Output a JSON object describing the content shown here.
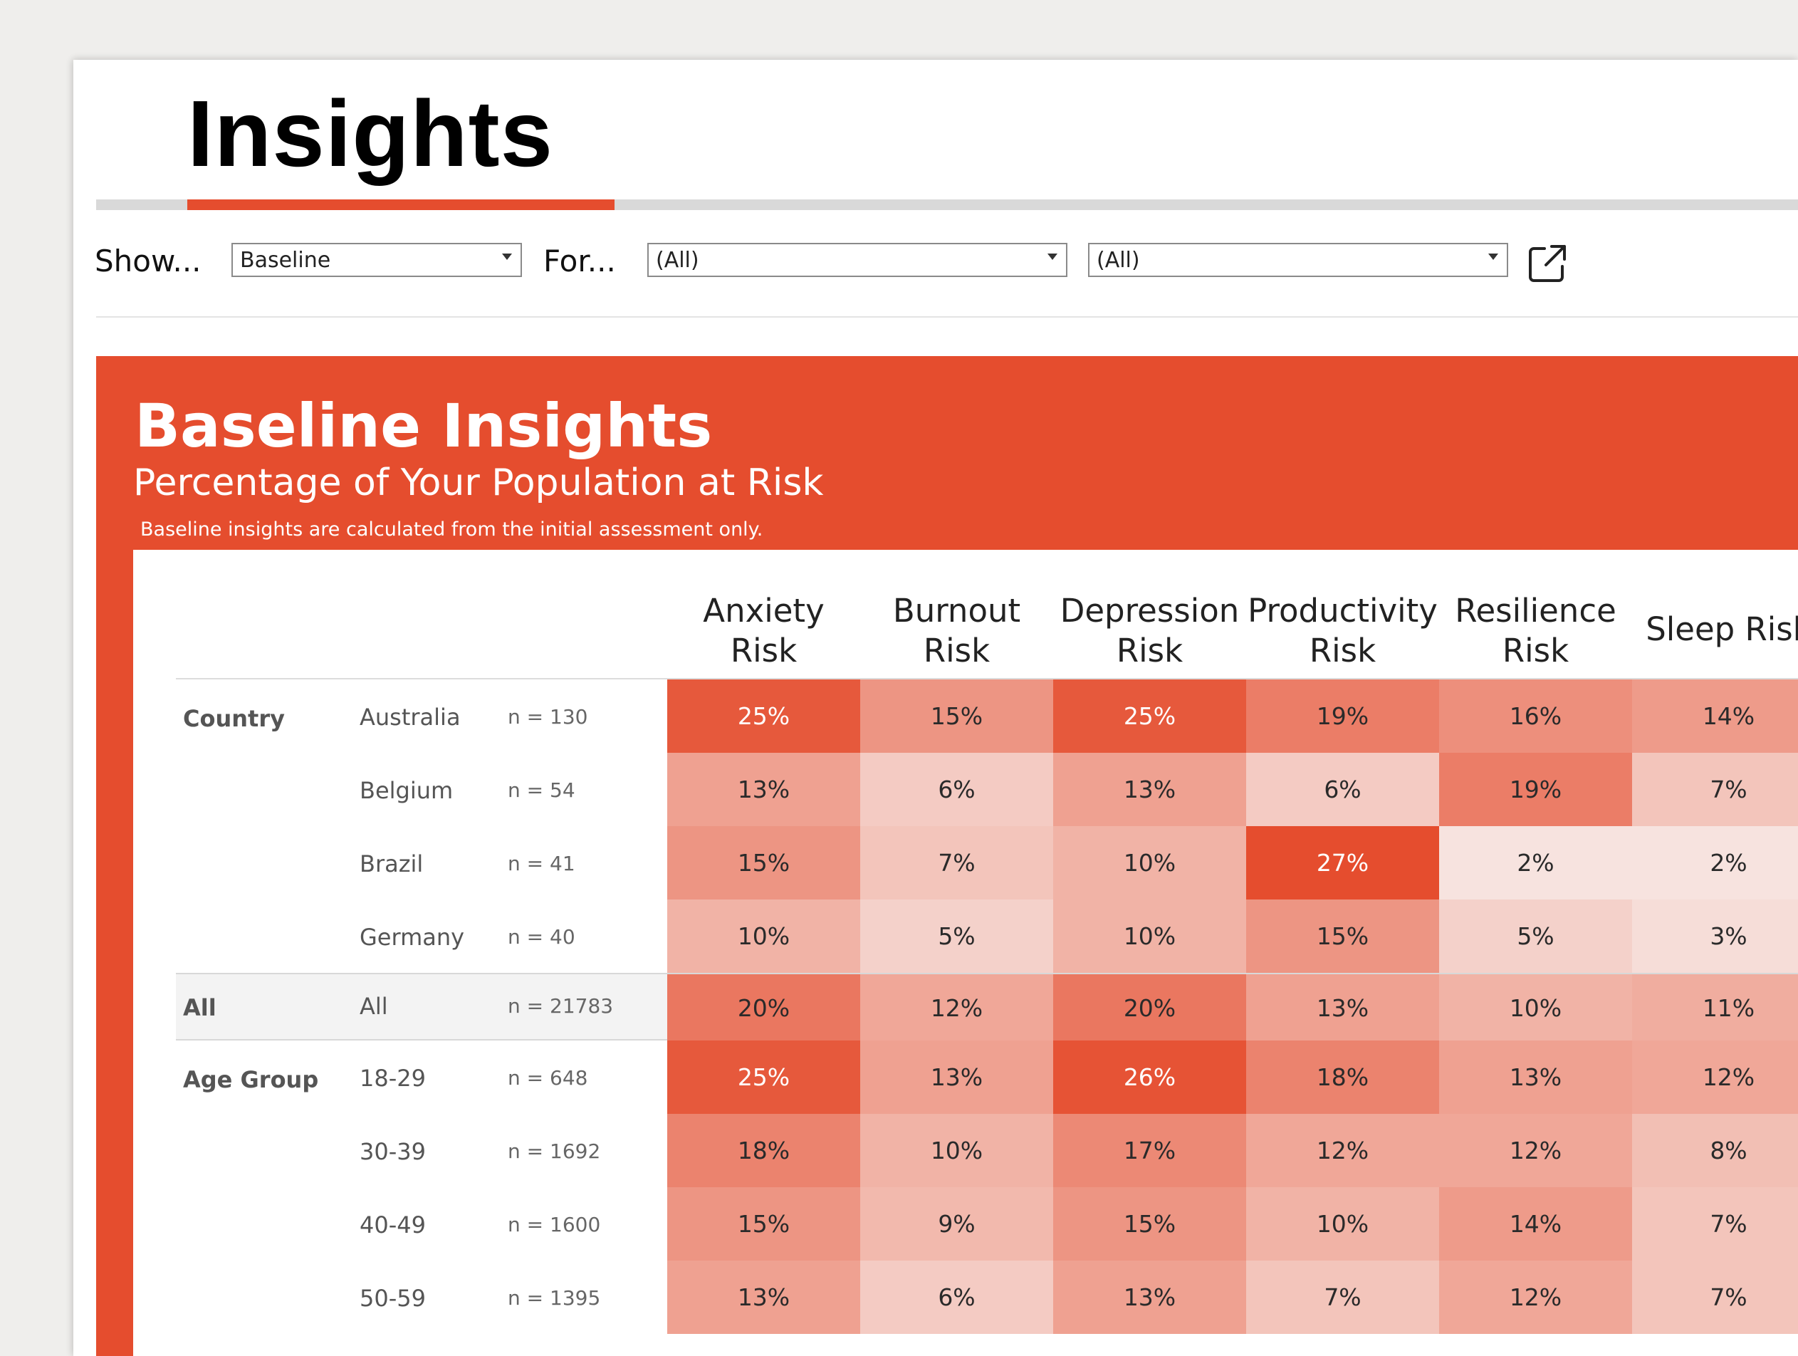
{
  "header": {
    "title": "Insights",
    "accent_color": "#e54d2e"
  },
  "filters": {
    "show_label": "Show...",
    "show_value": "Baseline",
    "for_label": "For...",
    "for_value_1": "(All)",
    "for_value_2": "(All)",
    "export_icon": "external-link-icon"
  },
  "report": {
    "title": "Baseline Insights",
    "subtitle": "Percentage of Your Population at Risk",
    "note": "Baseline insights are calculated from the initial assessment only.",
    "panel_color": "#e54d2e"
  },
  "chart_data": {
    "type": "heatmap",
    "columns": [
      [
        "Anxiety",
        "Risk"
      ],
      [
        "Burnout",
        "Risk"
      ],
      [
        "Depression",
        "Risk"
      ],
      [
        "Productivity",
        "Risk"
      ],
      [
        "Resilience",
        "Risk"
      ],
      [
        "Sleep Risk"
      ]
    ],
    "rows": [
      {
        "group": "Country",
        "member": "Australia",
        "n": "n = 130",
        "values": [
          25,
          15,
          25,
          19,
          16,
          14
        ]
      },
      {
        "group": "",
        "member": "Belgium",
        "n": "n = 54",
        "values": [
          13,
          6,
          13,
          6,
          19,
          7
        ]
      },
      {
        "group": "",
        "member": "Brazil",
        "n": "n = 41",
        "values": [
          15,
          7,
          10,
          27,
          2,
          2
        ]
      },
      {
        "group": "",
        "member": "Germany",
        "n": "n = 40",
        "values": [
          10,
          5,
          10,
          15,
          5,
          3
        ]
      },
      {
        "group": "All",
        "member": "All",
        "n": "n = 21783",
        "values": [
          20,
          12,
          20,
          13,
          10,
          11
        ],
        "highlight": true
      },
      {
        "group": "Age Group",
        "member": "18-29",
        "n": "n = 648",
        "values": [
          25,
          13,
          26,
          18,
          13,
          12
        ]
      },
      {
        "group": "",
        "member": "30-39",
        "n": "n = 1692",
        "values": [
          18,
          10,
          17,
          12,
          12,
          8
        ]
      },
      {
        "group": "",
        "member": "40-49",
        "n": "n = 1600",
        "values": [
          15,
          9,
          15,
          10,
          14,
          7
        ]
      },
      {
        "group": "",
        "member": "50-59",
        "n": "n = 1395",
        "values": [
          13,
          6,
          13,
          7,
          12,
          7
        ]
      }
    ],
    "value_suffix": "%",
    "color_low": "#f8efed",
    "color_high": "#e54d2e"
  }
}
